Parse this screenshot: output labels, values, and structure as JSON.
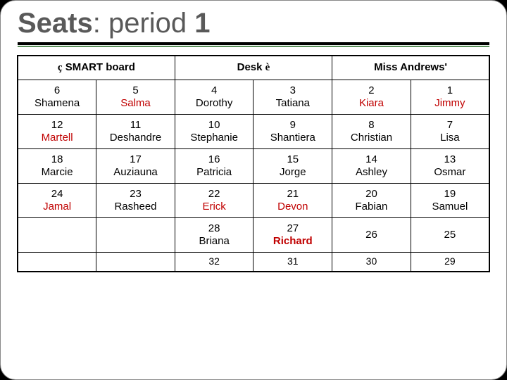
{
  "title_bold": "Seats",
  "title_sep": ": ",
  "title_mid": "period ",
  "title_num": "1",
  "header": {
    "left_arrow": "ç",
    "left_text": " SMART board",
    "center": "Desk ",
    "center_arrow": "è",
    "right": "Miss Andrews'"
  },
  "rows": [
    [
      {
        "num": "6",
        "name": "Shamena",
        "cls": ""
      },
      {
        "num": "5",
        "name": "Salma",
        "cls": "red"
      },
      {
        "num": "4",
        "name": "Dorothy",
        "cls": ""
      },
      {
        "num": "3",
        "name": "Tatiana",
        "cls": ""
      },
      {
        "num": "2",
        "name": "Kiara",
        "cls": "red"
      },
      {
        "num": "1",
        "name": "Jimmy",
        "cls": "red"
      }
    ],
    [
      {
        "num": "12",
        "name": "Martell",
        "cls": "red"
      },
      {
        "num": "11",
        "name": "Deshandre",
        "cls": ""
      },
      {
        "num": "10",
        "name": "Stephanie",
        "cls": ""
      },
      {
        "num": "9",
        "name": "Shantiera",
        "cls": ""
      },
      {
        "num": "8",
        "name": "Christian",
        "cls": ""
      },
      {
        "num": "7",
        "name": "Lisa",
        "cls": ""
      }
    ],
    [
      {
        "num": "18",
        "name": "Marcie",
        "cls": ""
      },
      {
        "num": "17",
        "name": "Auziauna",
        "cls": ""
      },
      {
        "num": "16",
        "name": "Patricia",
        "cls": ""
      },
      {
        "num": "15",
        "name": "Jorge",
        "cls": ""
      },
      {
        "num": "14",
        "name": "Ashley",
        "cls": ""
      },
      {
        "num": "13",
        "name": "Osmar",
        "cls": ""
      }
    ],
    [
      {
        "num": "24",
        "name": "Jamal",
        "cls": "red"
      },
      {
        "num": "23",
        "name": "Rasheed",
        "cls": ""
      },
      {
        "num": "22",
        "name": "Erick",
        "cls": "red"
      },
      {
        "num": "21",
        "name": "Devon",
        "cls": "red"
      },
      {
        "num": "20",
        "name": "Fabian",
        "cls": ""
      },
      {
        "num": "19",
        "name": "Samuel",
        "cls": ""
      }
    ],
    [
      {
        "num": "",
        "name": "",
        "cls": ""
      },
      {
        "num": "",
        "name": "",
        "cls": ""
      },
      {
        "num": "28",
        "name": "Briana",
        "cls": ""
      },
      {
        "num": "27",
        "name": "Richard",
        "cls": "red-bold"
      },
      {
        "num": "26",
        "name": "",
        "cls": ""
      },
      {
        "num": "25",
        "name": "",
        "cls": ""
      }
    ],
    [
      {
        "num": "",
        "name": "",
        "cls": "",
        "short": true
      },
      {
        "num": "",
        "name": "",
        "cls": ""
      },
      {
        "num": "32",
        "name": "",
        "cls": ""
      },
      {
        "num": "31",
        "name": "",
        "cls": ""
      },
      {
        "num": "30",
        "name": "",
        "cls": ""
      },
      {
        "num": "29",
        "name": "",
        "cls": ""
      }
    ]
  ]
}
